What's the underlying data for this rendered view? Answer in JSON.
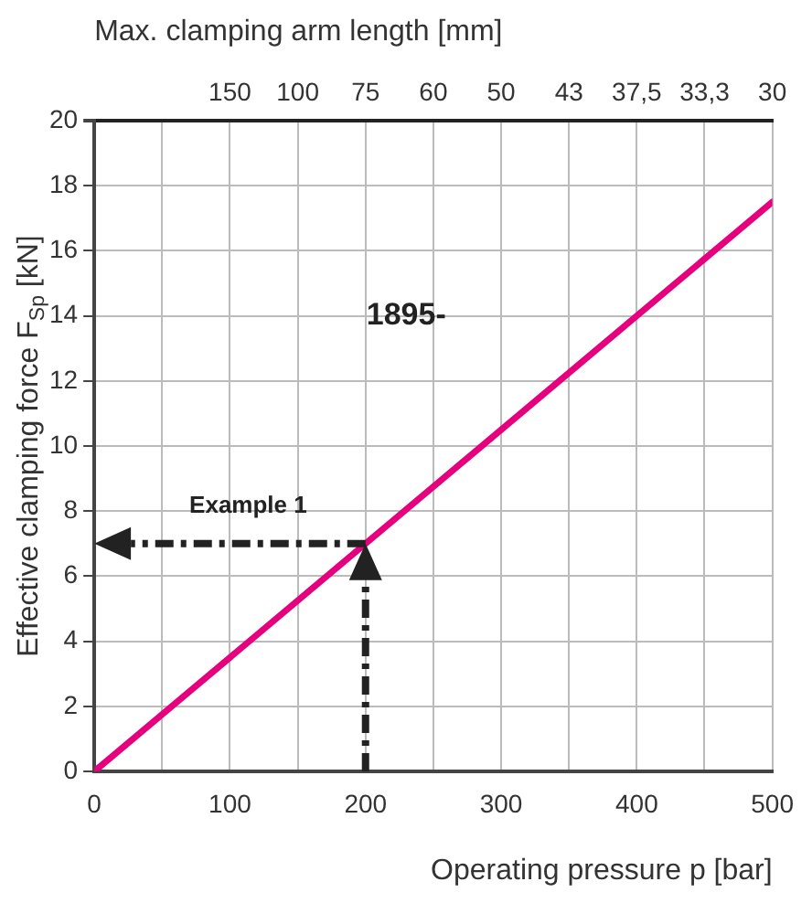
{
  "chart_data": {
    "type": "line",
    "xlabel": "Operating pressure p [bar]",
    "ylabel": "Effective clamping force F$_{Sp}$ [kN]",
    "x2label": "Max. clamping arm length [mm]",
    "x": [
      0,
      500
    ],
    "series": [
      {
        "color": "#e6007e",
        "values": [
          0,
          17.5
        ]
      }
    ],
    "xlim": [
      0,
      500
    ],
    "xticks": [
      0,
      {
        "value": 50,
        "label": null
      },
      100,
      {
        "value": 150,
        "label": null
      },
      200,
      {
        "value": 250,
        "label": null
      },
      300,
      {
        "value": 350,
        "label": null
      },
      400,
      {
        "value": 450,
        "label": null
      },
      500
    ],
    "ylim": [
      0,
      20
    ],
    "yticks": [
      0,
      2,
      4,
      6,
      8,
      10,
      12,
      14,
      16,
      18,
      20
    ],
    "grid": true,
    "marker": "none",
    "line_style": "solid",
    "annotations": [
      "1895-",
      {
        "text": "Example 1",
        "x": 200,
        "y": 7
      },
      "150",
      "100",
      "75",
      "60",
      "50",
      "43",
      "37,5",
      "33,3",
      "30"
    ]
  }
}
